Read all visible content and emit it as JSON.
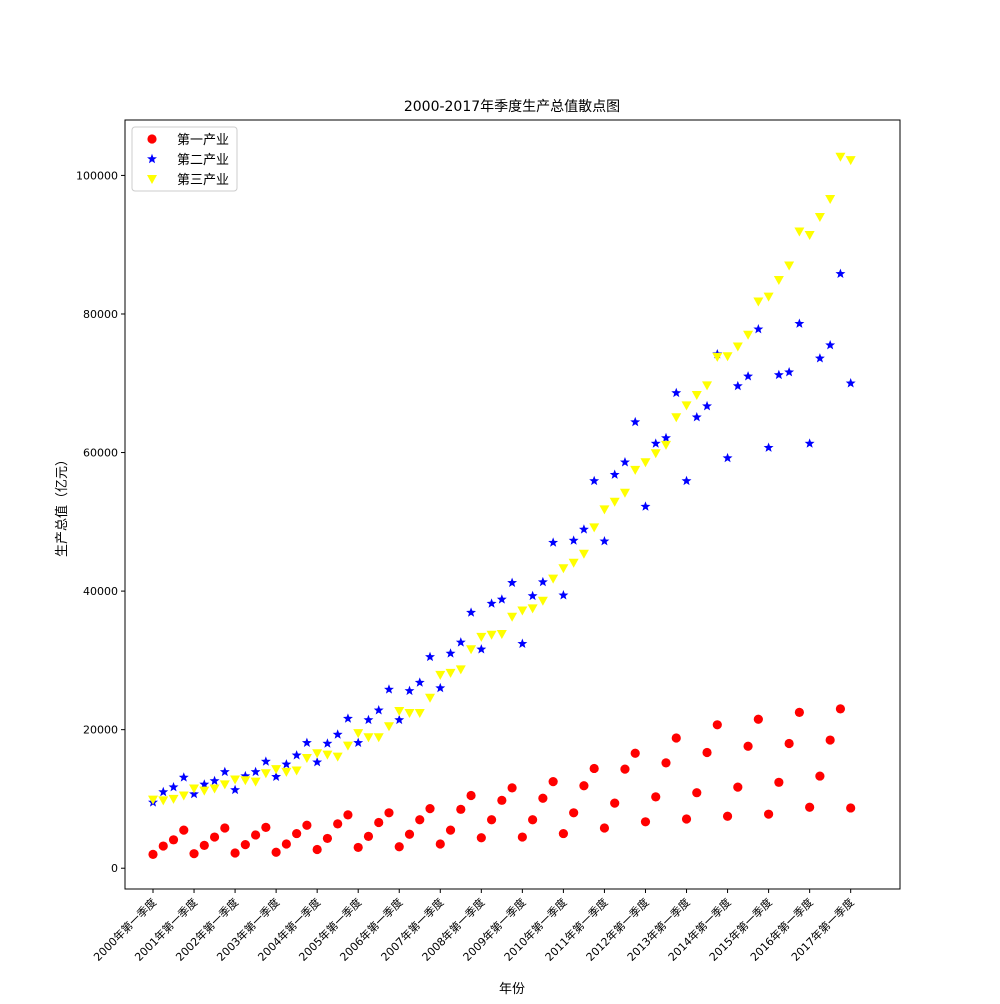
{
  "chart_data": {
    "type": "scatter",
    "title": "2000-2017年季度生产总值散点图",
    "xlabel": "年份",
    "ylabel": "生产总值（亿元）",
    "ylim": [
      -3000,
      108000
    ],
    "yticks": [
      0,
      20000,
      40000,
      60000,
      80000,
      100000
    ],
    "xtick_labels": [
      "2000年第一季度",
      "2001年第一季度",
      "2002年第一季度",
      "2003年第一季度",
      "2004年第一季度",
      "2005年第一季度",
      "2006年第一季度",
      "2007年第一季度",
      "2008年第一季度",
      "2009年第一季度",
      "2010年第一季度",
      "2011年第一季度",
      "2012年第一季度",
      "2013年第一季度",
      "2014年第一季度",
      "2015年第一季度",
      "2016年第一季度",
      "2017年第一季度"
    ],
    "legend_position": "top-left",
    "grid": false,
    "series": [
      {
        "name": "第一产业",
        "marker": "circle",
        "color": "#ff0000",
        "values": [
          2000,
          3200,
          4100,
          5500,
          2100,
          3300,
          4500,
          5800,
          2200,
          3400,
          4800,
          5900,
          2300,
          3500,
          5000,
          6200,
          2700,
          4300,
          6400,
          7700,
          3000,
          4600,
          6600,
          8000,
          3100,
          4900,
          7000,
          8600,
          3500,
          5500,
          8500,
          10500,
          4400,
          7000,
          9800,
          11600,
          4500,
          7000,
          10100,
          12500,
          5000,
          8000,
          11900,
          14400,
          5800,
          9400,
          14300,
          16600,
          6700,
          10300,
          15200,
          18800,
          7100,
          10900,
          16700,
          20700,
          7500,
          11700,
          17600,
          21500,
          7800,
          12400,
          18000,
          22500,
          8800,
          13300,
          18500,
          23000,
          8700
        ]
      },
      {
        "name": "第二产业",
        "marker": "star",
        "color": "#0000ff",
        "values": [
          9500,
          11000,
          11700,
          13100,
          10700,
          12100,
          12600,
          13900,
          11300,
          13300,
          13900,
          15400,
          13200,
          15000,
          16300,
          18100,
          15300,
          18000,
          19300,
          21600,
          18100,
          21400,
          22800,
          25800,
          21400,
          25600,
          26800,
          30500,
          26000,
          31000,
          32600,
          36900,
          31600,
          38200,
          38800,
          41200,
          32400,
          39300,
          41300,
          47000,
          39400,
          47300,
          48900,
          55900,
          47200,
          56800,
          58600,
          64400,
          52200,
          61300,
          62100,
          68600,
          55900,
          65100,
          66700,
          74200,
          59200,
          69600,
          71000,
          77800,
          60700,
          71200,
          71600,
          78600,
          61300,
          73600,
          75500,
          85800,
          70000
        ]
      },
      {
        "name": "第三产业",
        "marker": "triangle-down",
        "color": "#ffff00",
        "values": [
          9900,
          9800,
          10000,
          10500,
          11500,
          11200,
          11500,
          12100,
          12800,
          12700,
          12500,
          13700,
          14300,
          13900,
          14100,
          15900,
          16600,
          16400,
          16100,
          17700,
          19500,
          18900,
          18900,
          20500,
          22700,
          22400,
          22400,
          24600,
          27900,
          28200,
          28700,
          31600,
          33400,
          33700,
          33800,
          36300,
          37200,
          37500,
          38600,
          41800,
          43300,
          44100,
          45400,
          49200,
          51800,
          52900,
          54200,
          57500,
          58600,
          59900,
          61100,
          65100,
          66800,
          68300,
          69700,
          73800,
          73900,
          75300,
          77000,
          81800,
          82500,
          84900,
          87000,
          91900,
          91400,
          94000,
          96600,
          102700,
          102200
        ]
      }
    ]
  }
}
